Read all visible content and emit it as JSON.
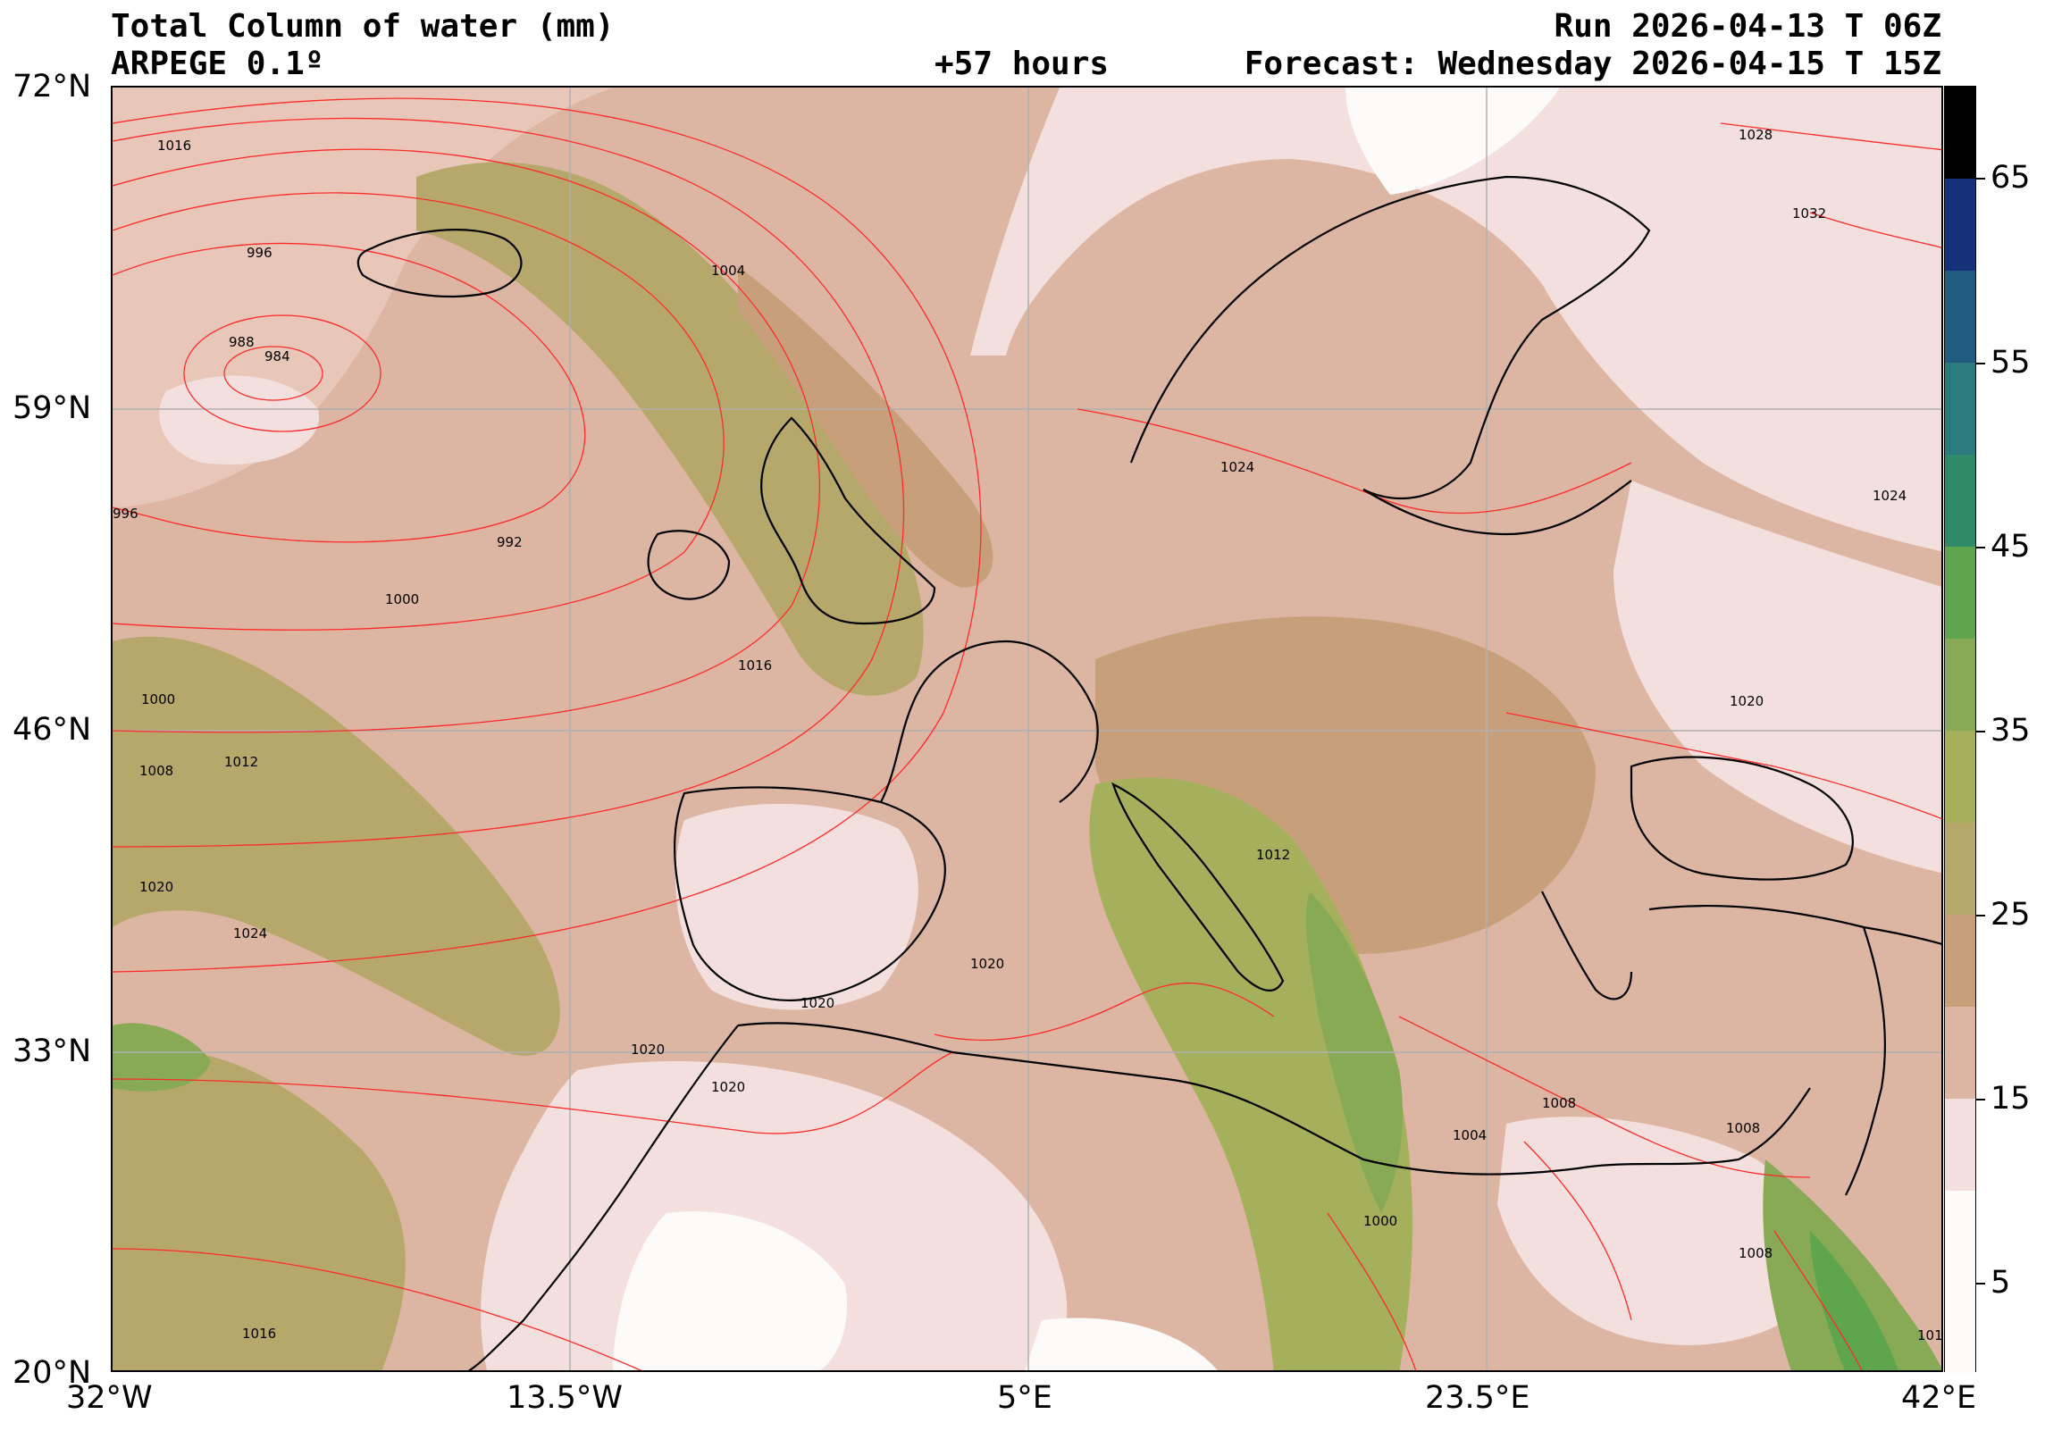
{
  "header": {
    "title_left_1": "Total Column of water (mm)",
    "title_left_2": "ARPEGE 0.1º",
    "run": "Run 2026-04-13 T 06Z",
    "lead": "+57 hours",
    "forecast": "Forecast: Wednesday 2026-04-15 T 15Z"
  },
  "axes": {
    "lat_labels": [
      "72°N",
      "59°N",
      "46°N",
      "33°N",
      "20°N"
    ],
    "lon_labels": [
      "32°W",
      "13.5°W",
      "5°E",
      "23.5°E",
      "42°E"
    ]
  },
  "colorbar": {
    "labels": [
      "65",
      "55",
      "45",
      "35",
      "25",
      "15",
      "5"
    ],
    "colors": [
      "#fdfafa",
      "#f3e0de",
      "#ddb5a3",
      "#c7a07b",
      "#b6a86a",
      "#a5b05d",
      "#88aa57",
      "#5ea54e",
      "#2f8a6a",
      "#2a7a7e",
      "#1f5c80",
      "#14317a",
      "#000000"
    ]
  },
  "map": {
    "isobar_labels": [
      "1016",
      "996",
      "1004",
      "988",
      "984",
      "996",
      "992",
      "1000",
      "1016",
      "1000",
      "1008",
      "1012",
      "1020",
      "1024",
      "1024",
      "1020",
      "1020",
      "1020",
      "1020",
      "1012",
      "1028",
      "1032",
      "1024",
      "1020",
      "1008",
      "1004",
      "1000",
      "1008",
      "1016",
      "1008",
      "101"
    ],
    "colors": {
      "ocean": "#ddb5a3",
      "isobar": "#ff2a2a",
      "coast": "#000000",
      "grid": "#b0b0b0"
    }
  }
}
